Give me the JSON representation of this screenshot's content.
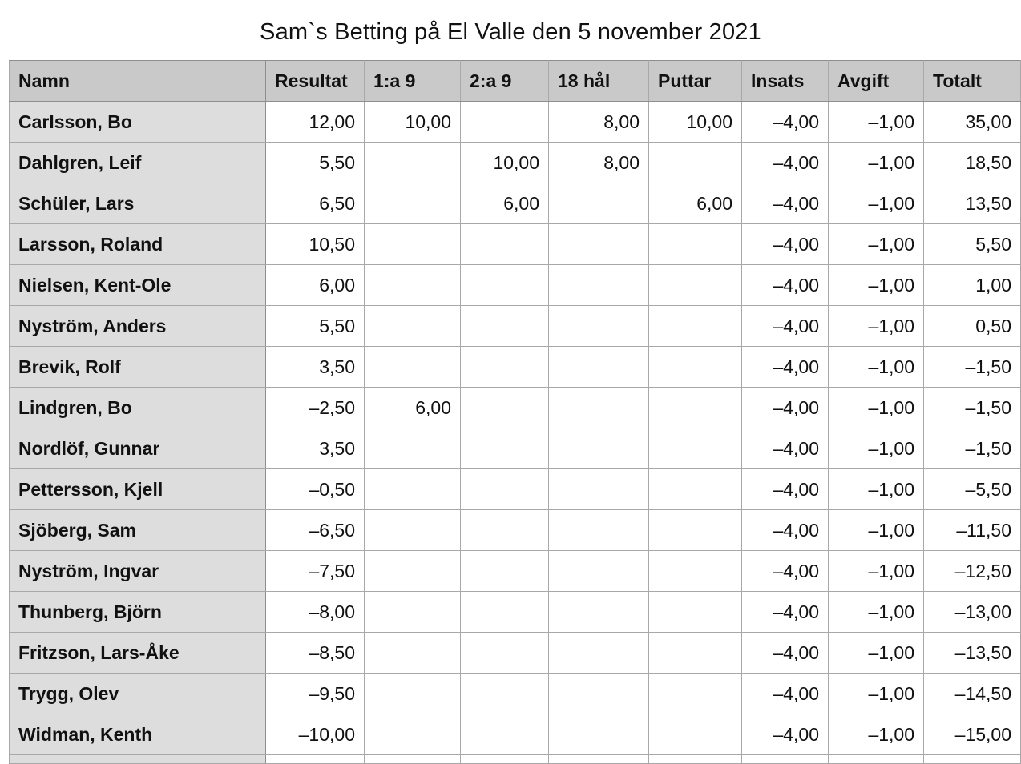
{
  "title": "Sam`s Betting på El Valle den 5 november 2021",
  "columns": [
    "Namn",
    "Resultat",
    "1:a 9",
    "2:a 9",
    "18 hål",
    "Puttar",
    "Insats",
    "Avgift",
    "Totalt"
  ],
  "rows": [
    {
      "name": "Carlsson, Bo",
      "resultat": "12,00",
      "forsta9": "10,00",
      "andra9": "",
      "hal18": "8,00",
      "puttar": "10,00",
      "insats": "–4,00",
      "avgift": "–1,00",
      "totalt": "35,00"
    },
    {
      "name": "Dahlgren, Leif",
      "resultat": "5,50",
      "forsta9": "",
      "andra9": "10,00",
      "hal18": "8,00",
      "puttar": "",
      "insats": "–4,00",
      "avgift": "–1,00",
      "totalt": "18,50"
    },
    {
      "name": "Schüler, Lars",
      "resultat": "6,50",
      "forsta9": "",
      "andra9": "6,00",
      "hal18": "",
      "puttar": "6,00",
      "insats": "–4,00",
      "avgift": "–1,00",
      "totalt": "13,50"
    },
    {
      "name": "Larsson, Roland",
      "resultat": "10,50",
      "forsta9": "",
      "andra9": "",
      "hal18": "",
      "puttar": "",
      "insats": "–4,00",
      "avgift": "–1,00",
      "totalt": "5,50"
    },
    {
      "name": "Nielsen, Kent-Ole",
      "resultat": "6,00",
      "forsta9": "",
      "andra9": "",
      "hal18": "",
      "puttar": "",
      "insats": "–4,00",
      "avgift": "–1,00",
      "totalt": "1,00"
    },
    {
      "name": "Nyström, Anders",
      "resultat": "5,50",
      "forsta9": "",
      "andra9": "",
      "hal18": "",
      "puttar": "",
      "insats": "–4,00",
      "avgift": "–1,00",
      "totalt": "0,50"
    },
    {
      "name": "Brevik, Rolf",
      "resultat": "3,50",
      "forsta9": "",
      "andra9": "",
      "hal18": "",
      "puttar": "",
      "insats": "–4,00",
      "avgift": "–1,00",
      "totalt": "–1,50"
    },
    {
      "name": "Lindgren, Bo",
      "resultat": "–2,50",
      "forsta9": "6,00",
      "andra9": "",
      "hal18": "",
      "puttar": "",
      "insats": "–4,00",
      "avgift": "–1,00",
      "totalt": "–1,50"
    },
    {
      "name": "Nordlöf, Gunnar",
      "resultat": "3,50",
      "forsta9": "",
      "andra9": "",
      "hal18": "",
      "puttar": "",
      "insats": "–4,00",
      "avgift": "–1,00",
      "totalt": "–1,50"
    },
    {
      "name": "Pettersson, Kjell",
      "resultat": "–0,50",
      "forsta9": "",
      "andra9": "",
      "hal18": "",
      "puttar": "",
      "insats": "–4,00",
      "avgift": "–1,00",
      "totalt": "–5,50"
    },
    {
      "name": "Sjöberg, Sam",
      "resultat": "–6,50",
      "forsta9": "",
      "andra9": "",
      "hal18": "",
      "puttar": "",
      "insats": "–4,00",
      "avgift": "–1,00",
      "totalt": "–11,50"
    },
    {
      "name": "Nyström, Ingvar",
      "resultat": "–7,50",
      "forsta9": "",
      "andra9": "",
      "hal18": "",
      "puttar": "",
      "insats": "–4,00",
      "avgift": "–1,00",
      "totalt": "–12,50"
    },
    {
      "name": "Thunberg, Björn",
      "resultat": "–8,00",
      "forsta9": "",
      "andra9": "",
      "hal18": "",
      "puttar": "",
      "insats": "–4,00",
      "avgift": "–1,00",
      "totalt": "–13,00"
    },
    {
      "name": "Fritzson, Lars-Åke",
      "resultat": "–8,50",
      "forsta9": "",
      "andra9": "",
      "hal18": "",
      "puttar": "",
      "insats": "–4,00",
      "avgift": "–1,00",
      "totalt": "–13,50"
    },
    {
      "name": "Trygg, Olev",
      "resultat": "–9,50",
      "forsta9": "",
      "andra9": "",
      "hal18": "",
      "puttar": "",
      "insats": "–4,00",
      "avgift": "–1,00",
      "totalt": "–14,50"
    },
    {
      "name": "Widman, Kenth",
      "resultat": "–10,00",
      "forsta9": "",
      "andra9": "",
      "hal18": "",
      "puttar": "",
      "insats": "–4,00",
      "avgift": "–1,00",
      "totalt": "–15,00"
    }
  ]
}
